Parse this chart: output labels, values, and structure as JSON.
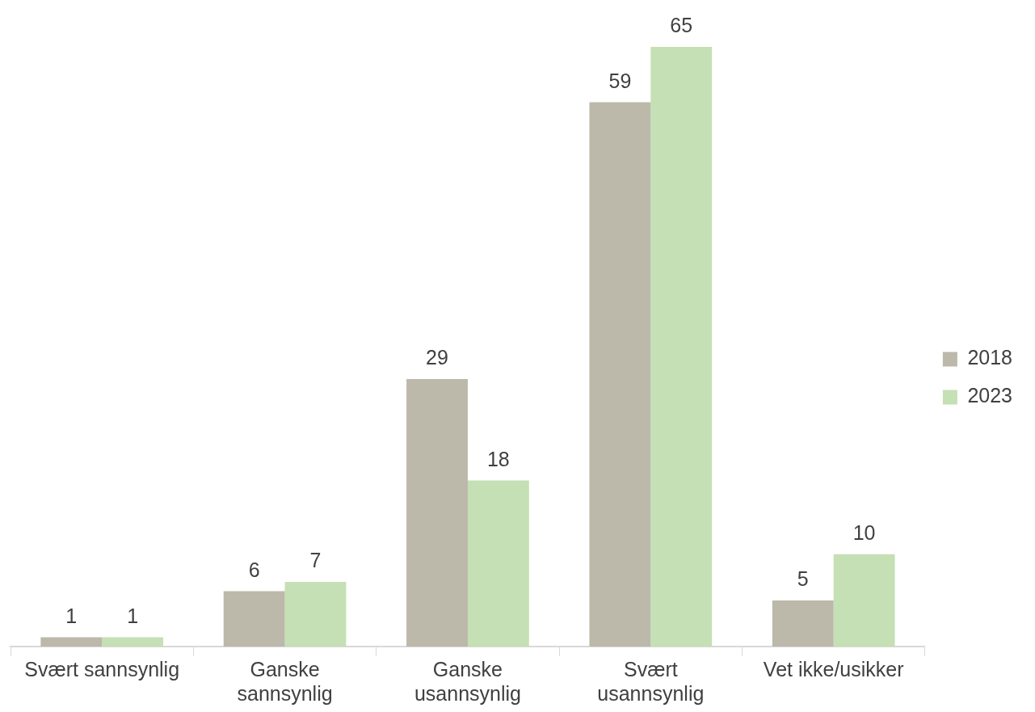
{
  "chart_data": {
    "type": "bar",
    "categories": [
      "Svært sannsynlig",
      "Ganske sannsynlig",
      "Ganske usannsynlig",
      "Svært usannsynlig",
      "Vet ikke/usikker"
    ],
    "series": [
      {
        "name": "2018",
        "color": "#bcb8aa",
        "values": [
          1,
          6,
          29,
          59,
          5
        ]
      },
      {
        "name": "2023",
        "color": "#c5e0b4",
        "values": [
          1,
          7,
          18,
          65,
          10
        ]
      }
    ],
    "data_labels": true,
    "legend": "right",
    "grid": false
  }
}
